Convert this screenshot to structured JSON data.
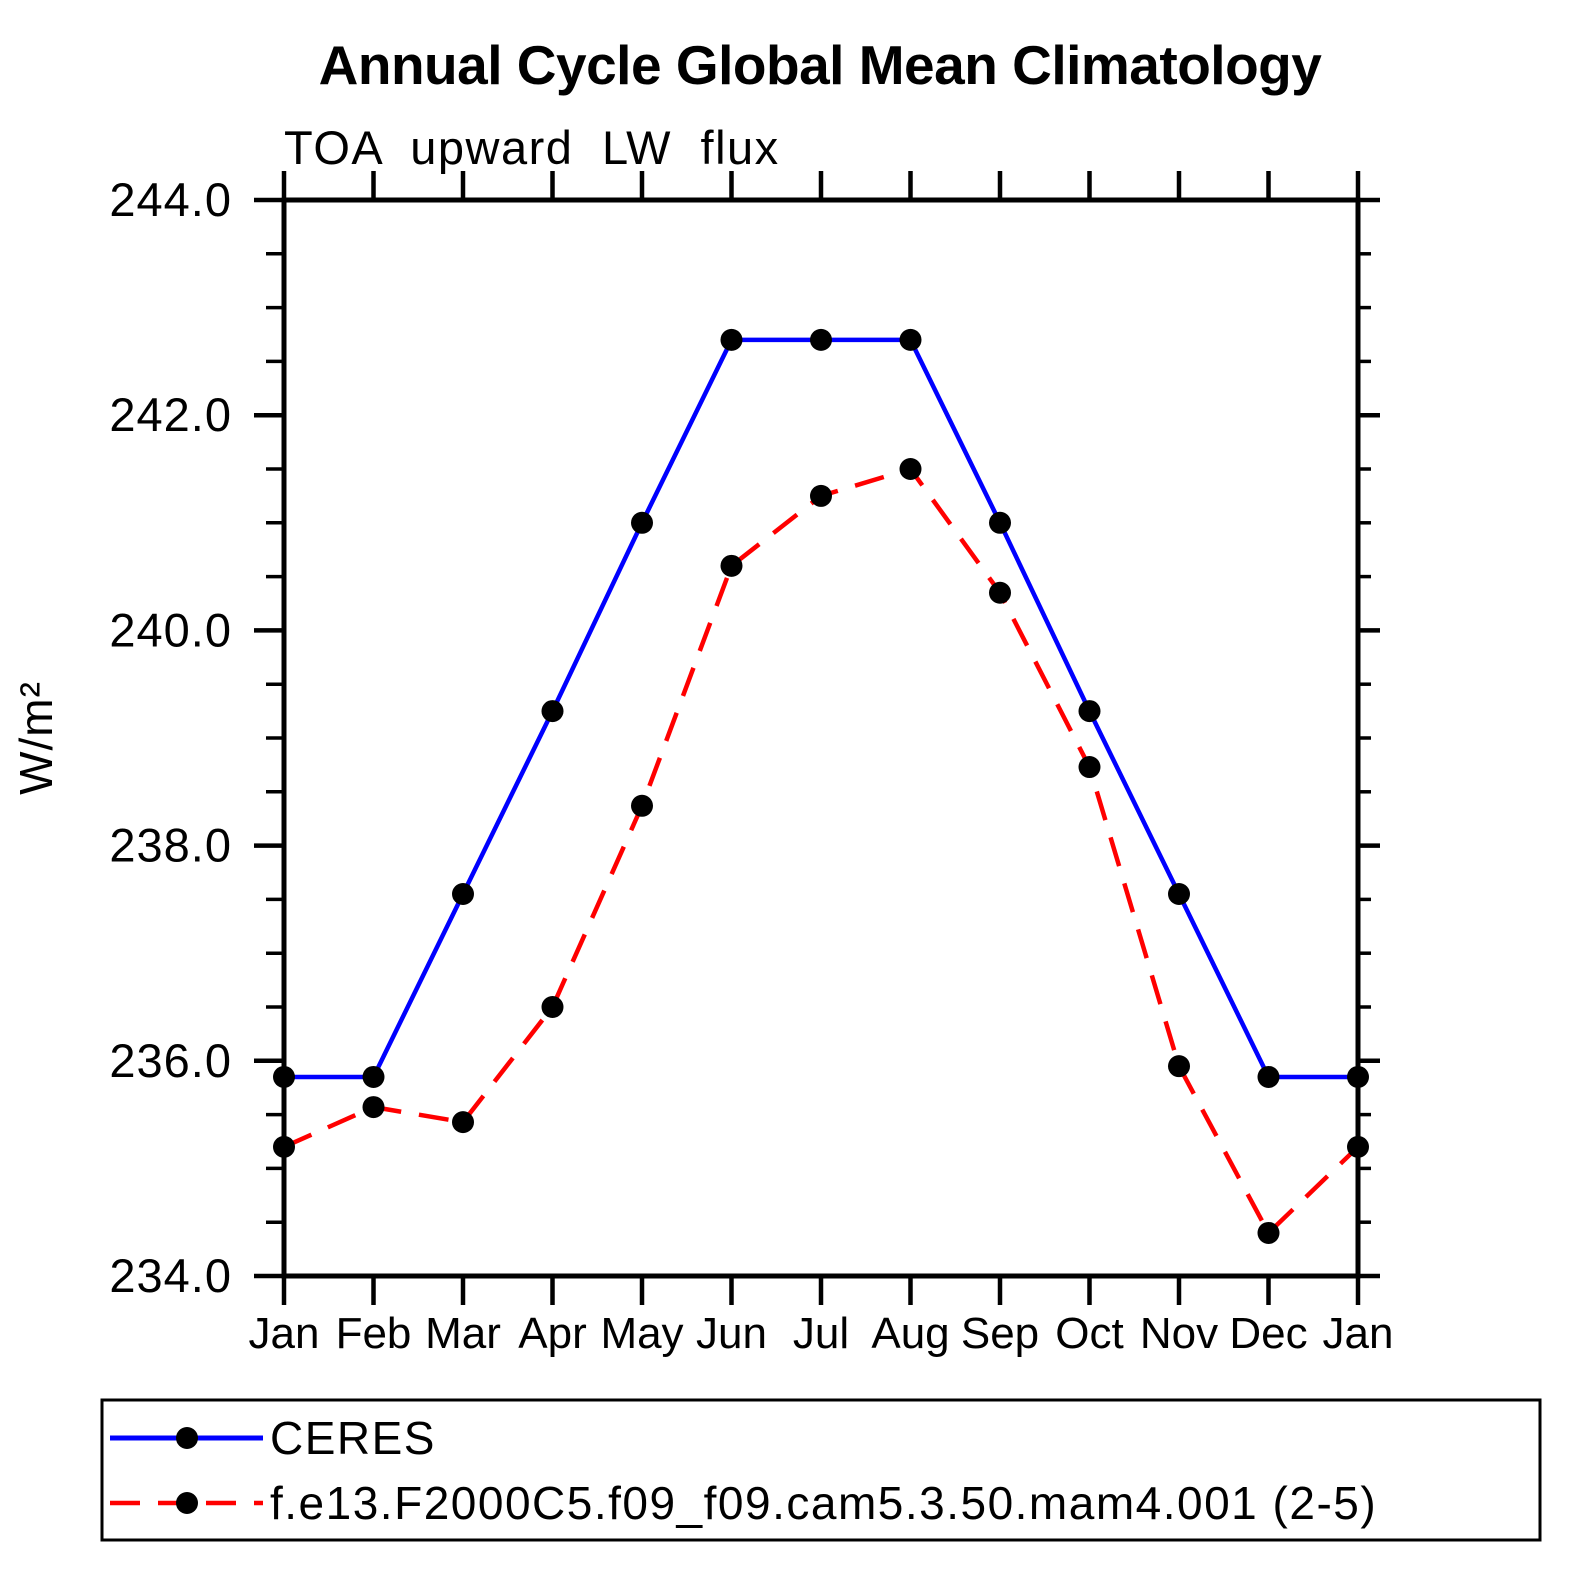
{
  "title": "Annual Cycle Global Mean Climatology",
  "subtitle": "TOA upward LW flux",
  "y_axis_label": "W/m²",
  "chart_data": {
    "type": "line",
    "x_categories": [
      "Jan",
      "Feb",
      "Mar",
      "Apr",
      "May",
      "Jun",
      "Jul",
      "Aug",
      "Sep",
      "Oct",
      "Nov",
      "Dec",
      "Jan"
    ],
    "xlabel": "",
    "ylabel": "W/m²",
    "ylim": [
      234.0,
      244.0
    ],
    "y_major_tick_step": 2.0,
    "y_minor_tick_step": 0.5,
    "y_tick_labels": [
      "234.0",
      "236.0",
      "238.0",
      "240.0",
      "242.0",
      "244.0"
    ],
    "grid": false,
    "legend_position": "bottom",
    "series": [
      {
        "name": "CERES",
        "color": "#0000ff",
        "line_style": "solid",
        "marker": "filled-circle",
        "marker_color": "#000000",
        "values": [
          235.85,
          235.85,
          237.55,
          239.25,
          241.0,
          242.7,
          242.7,
          242.7,
          241.0,
          239.25,
          237.55,
          235.85,
          235.85
        ]
      },
      {
        "name": "f.e13.F2000C5.f09_f09.cam5.3.50.mam4.001 (2-5)",
        "color": "#ff0000",
        "line_style": "dashed",
        "marker": "filled-circle",
        "marker_color": "#000000",
        "values": [
          235.2,
          235.57,
          235.43,
          236.5,
          238.37,
          240.6,
          241.25,
          241.5,
          240.35,
          238.73,
          235.95,
          234.4,
          235.2
        ]
      }
    ]
  },
  "colors": {
    "background": "#ffffff",
    "axis": "#000000",
    "ceres_line": "#0000ff",
    "model_line": "#ff0000",
    "marker": "#000000"
  }
}
